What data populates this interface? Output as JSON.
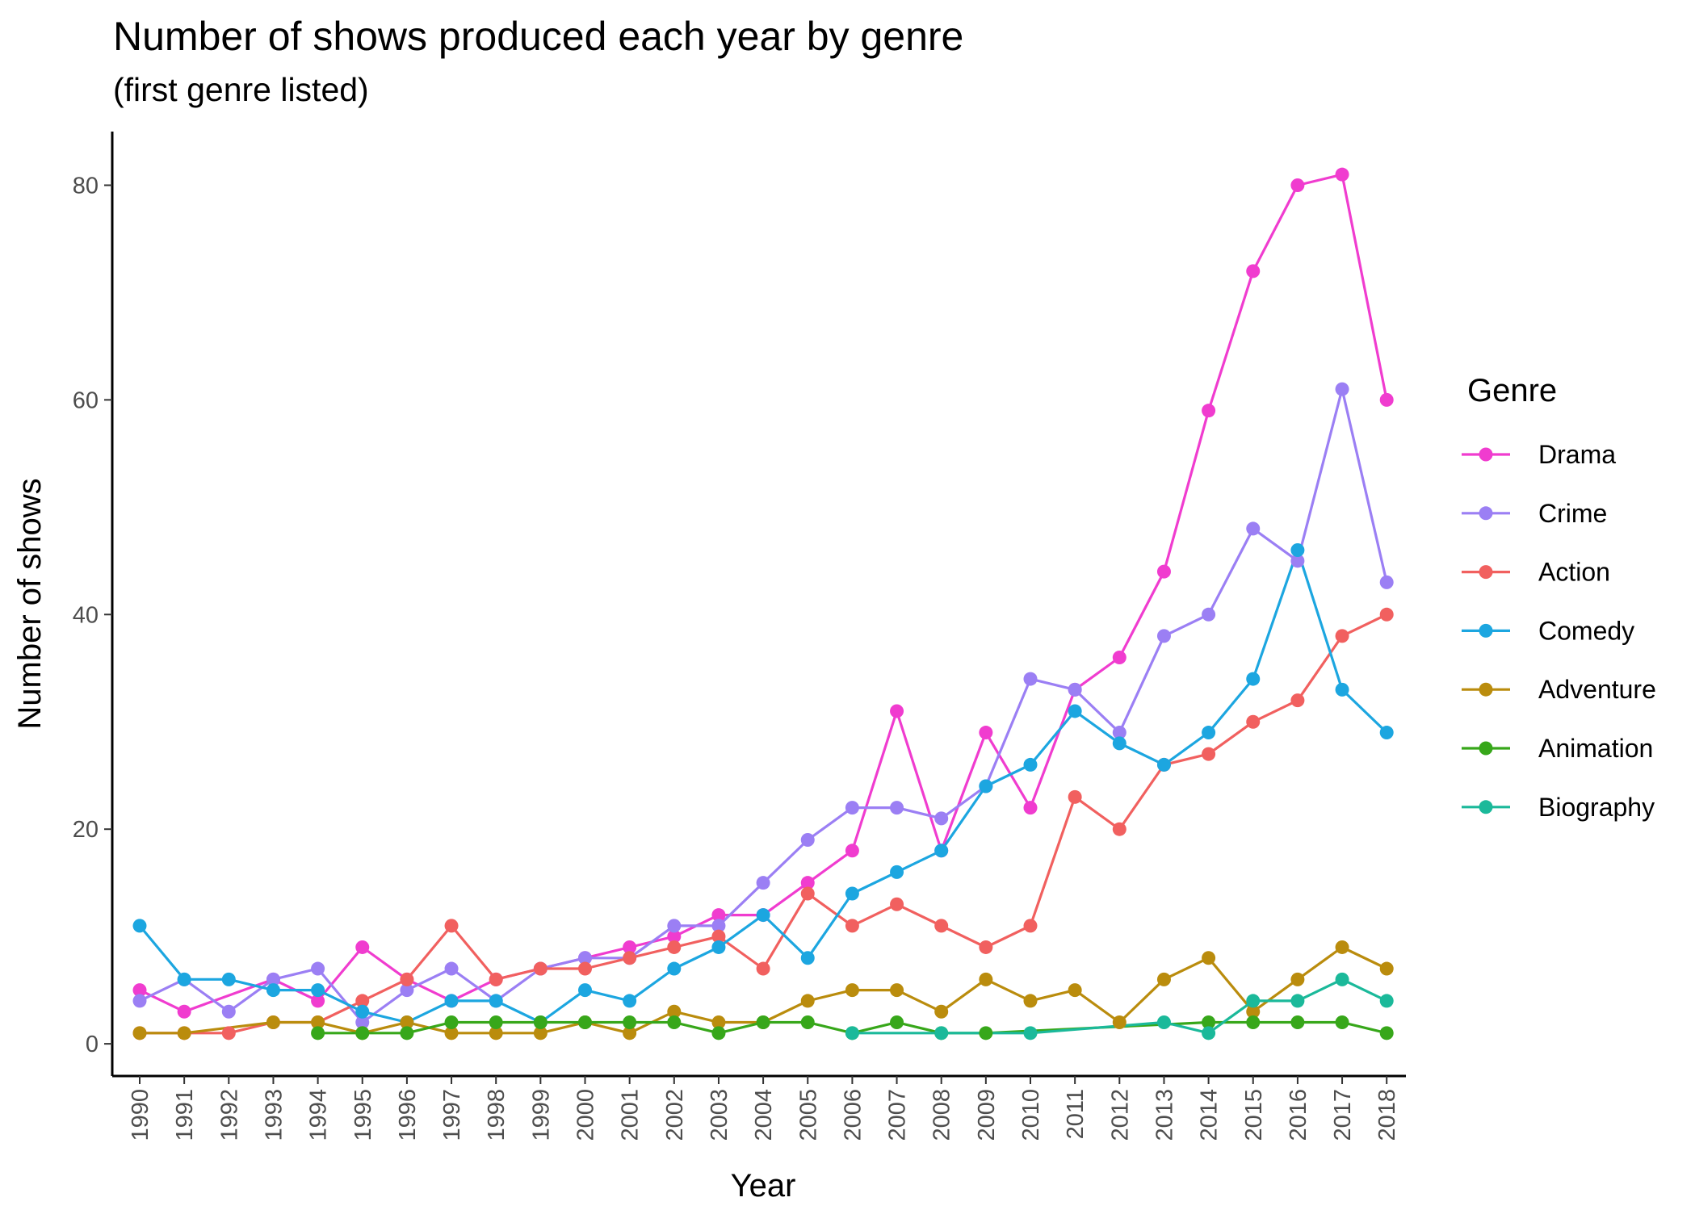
{
  "chart_data": {
    "type": "line",
    "title": "Number of shows produced each year by genre",
    "subtitle": "(first genre listed)",
    "xlabel": "Year",
    "ylabel": "Number of shows",
    "x": [
      "1990",
      "1991",
      "1992",
      "1993",
      "1994",
      "1995",
      "1996",
      "1997",
      "1998",
      "1999",
      "2000",
      "2001",
      "2002",
      "2003",
      "2004",
      "2005",
      "2006",
      "2007",
      "2008",
      "2009",
      "2010",
      "2011",
      "2012",
      "2013",
      "2014",
      "2015",
      "2016",
      "2017",
      "2018"
    ],
    "ylim": [
      -3,
      85
    ],
    "yticks": [
      0,
      20,
      40,
      60,
      80
    ],
    "grid": false,
    "legend": {
      "title": "Genre",
      "position": "right"
    },
    "series": [
      {
        "name": "Drama",
        "color": "#F03CCF",
        "values": [
          5,
          3,
          null,
          6,
          4,
          9,
          6,
          4,
          6,
          7,
          8,
          9,
          10,
          12,
          12,
          15,
          18,
          31,
          18,
          29,
          22,
          33,
          36,
          44,
          59,
          72,
          80,
          81,
          60
        ]
      },
      {
        "name": "Crime",
        "color": "#9B7FF4",
        "values": [
          4,
          6,
          3,
          6,
          7,
          2,
          5,
          7,
          4,
          7,
          8,
          8,
          11,
          11,
          15,
          19,
          22,
          22,
          21,
          24,
          34,
          33,
          29,
          38,
          40,
          48,
          45,
          61,
          43
        ]
      },
      {
        "name": "Action",
        "color": "#F1605F",
        "values": [
          1,
          1,
          1,
          2,
          2,
          4,
          6,
          11,
          6,
          7,
          7,
          8,
          9,
          10,
          7,
          14,
          11,
          13,
          11,
          9,
          11,
          23,
          20,
          26,
          27,
          30,
          32,
          38,
          40
        ]
      },
      {
        "name": "Comedy",
        "color": "#1CA6E0",
        "values": [
          11,
          6,
          6,
          5,
          5,
          3,
          2,
          4,
          4,
          2,
          5,
          4,
          7,
          9,
          12,
          8,
          14,
          16,
          18,
          24,
          26,
          31,
          28,
          26,
          29,
          34,
          46,
          33,
          29
        ]
      },
      {
        "name": "Adventure",
        "color": "#BA8C0D",
        "values": [
          1,
          1,
          null,
          2,
          2,
          1,
          2,
          1,
          1,
          1,
          2,
          1,
          3,
          2,
          2,
          4,
          5,
          5,
          3,
          6,
          4,
          5,
          2,
          6,
          8,
          3,
          6,
          9,
          7
        ]
      },
      {
        "name": "Animation",
        "color": "#37A71A",
        "values": [
          null,
          null,
          null,
          null,
          1,
          1,
          1,
          2,
          2,
          2,
          2,
          2,
          2,
          1,
          2,
          2,
          1,
          2,
          1,
          1,
          null,
          null,
          null,
          null,
          2,
          2,
          2,
          2,
          1
        ]
      },
      {
        "name": "Biography",
        "color": "#1BB99A",
        "values": [
          null,
          null,
          null,
          null,
          null,
          null,
          null,
          null,
          null,
          null,
          null,
          null,
          null,
          null,
          null,
          null,
          1,
          null,
          1,
          null,
          1,
          null,
          null,
          2,
          1,
          4,
          4,
          6,
          4
        ]
      }
    ]
  }
}
